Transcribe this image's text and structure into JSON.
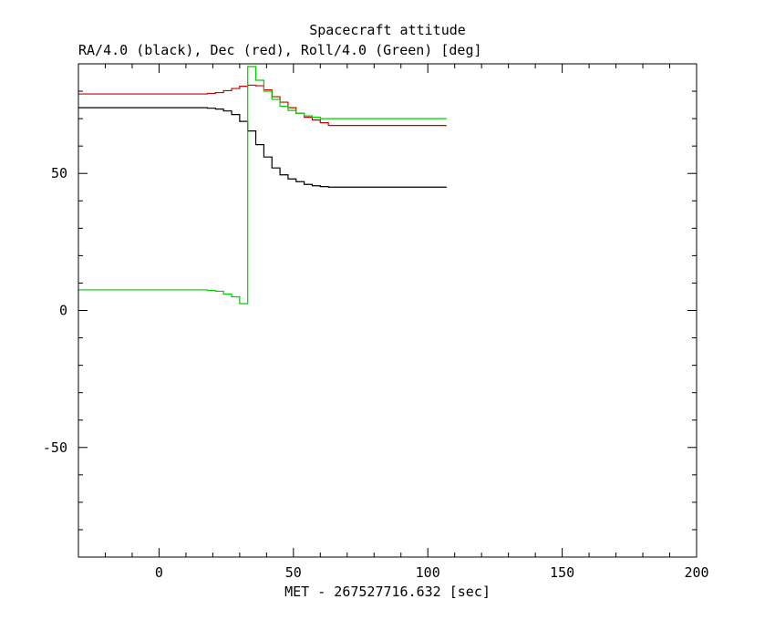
{
  "chart_data": {
    "type": "line",
    "step": true,
    "title": "Spacecraft attitude",
    "subtitle": "RA/4.0 (black), Dec (red), Roll/4.0 (Green) [deg]",
    "xlabel": "MET - 267527716.632 [sec]",
    "ylabel": "",
    "xlim": [
      -30,
      200
    ],
    "ylim": [
      -90,
      90
    ],
    "x_ticks": [
      0,
      50,
      100,
      150,
      200
    ],
    "y_ticks": [
      -50,
      0,
      50
    ],
    "x_minor_step": 10,
    "y_minor_step": 10,
    "grid": false,
    "series": [
      {
        "color": "#000000",
        "x": [
          -30,
          15,
          18,
          21,
          24,
          27,
          30,
          33,
          36,
          39,
          42,
          45,
          48,
          51,
          54,
          57,
          60,
          63,
          107
        ],
        "y": [
          74,
          74,
          73.8,
          73.5,
          72.8,
          71.5,
          69,
          65.5,
          60.5,
          56,
          52,
          49.5,
          48,
          47,
          46,
          45.5,
          45.2,
          45,
          45
        ]
      },
      {
        "color": "#cc0000",
        "x": [
          -30,
          15,
          18,
          21,
          24,
          27,
          30,
          33,
          36,
          39,
          42,
          45,
          48,
          51,
          54,
          57,
          60,
          63,
          107
        ],
        "y": [
          79,
          79,
          79.2,
          79.5,
          80.2,
          81,
          81.8,
          82.2,
          82,
          80.5,
          78,
          76,
          74,
          72,
          70.5,
          69.5,
          68.5,
          67.5,
          67.5
        ]
      },
      {
        "color": "#00cc00",
        "x": [
          -30,
          15,
          18,
          21,
          24,
          27,
          30,
          33,
          36,
          39,
          42,
          45,
          48,
          51,
          54,
          57,
          60,
          63,
          107
        ],
        "y": [
          7.5,
          7.5,
          7.3,
          7,
          6,
          5,
          2.5,
          89,
          84,
          80,
          77,
          74.5,
          73,
          72,
          71,
          70.5,
          70,
          70,
          70
        ]
      }
    ]
  }
}
